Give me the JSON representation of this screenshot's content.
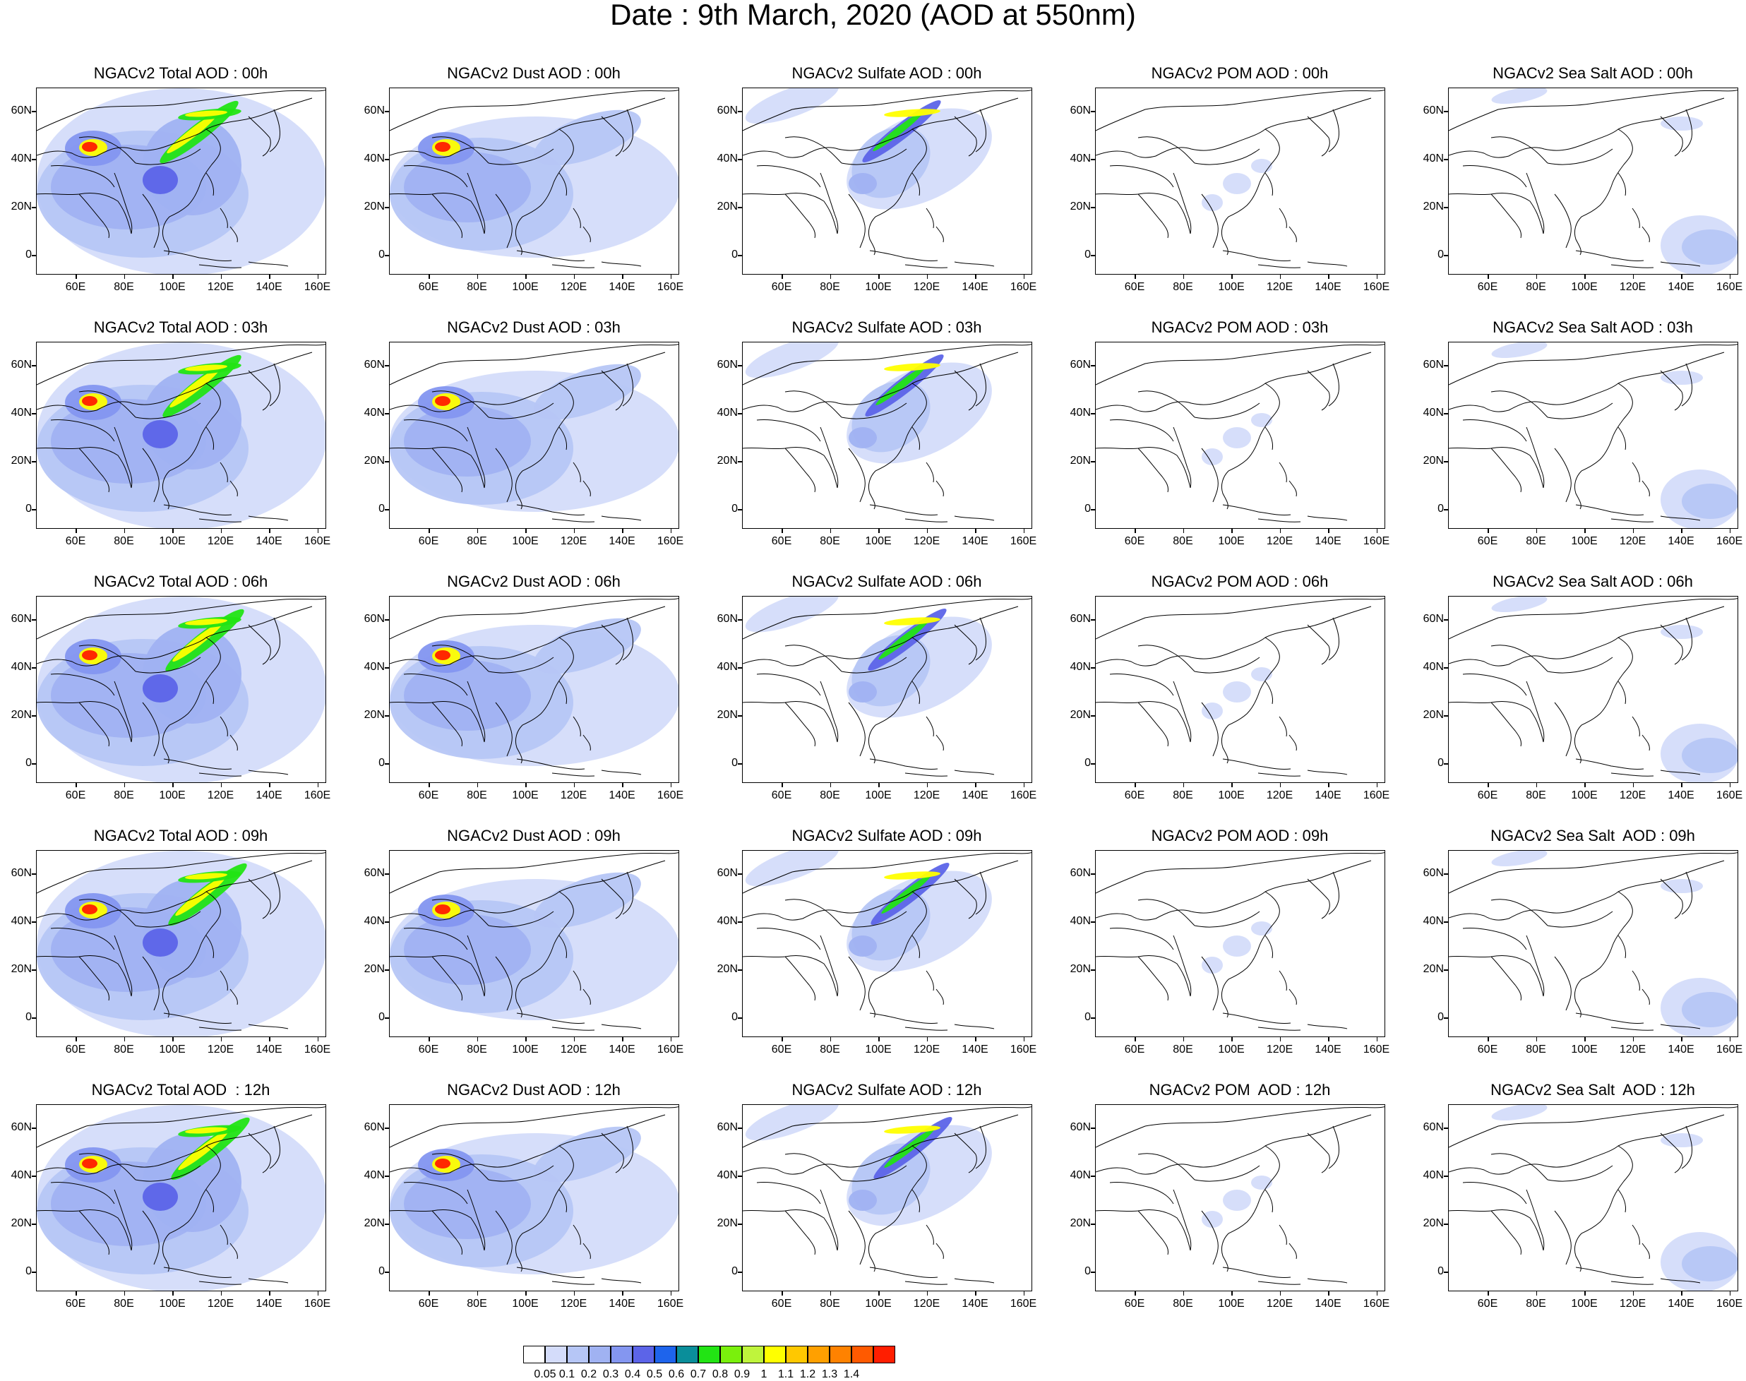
{
  "title": "Date : 9th March, 2020 (AOD at 550nm)",
  "lat_ticks": [
    "60N",
    "40N",
    "20N",
    "0"
  ],
  "lon_ticks": [
    "60E",
    "80E",
    "100E",
    "120E",
    "140E",
    "160E"
  ],
  "rows": [
    {
      "hour": "00h",
      "titles": [
        "NGACv2 Total AOD : 00h",
        "NGACv2 Dust AOD : 00h",
        "NGACv2 Sulfate AOD : 00h",
        "NGACv2 POM AOD : 00h",
        "NGACv2 Sea Salt AOD : 00h"
      ]
    },
    {
      "hour": "03h",
      "titles": [
        "NGACv2 Total AOD : 03h",
        "NGACv2 Dust AOD : 03h",
        "NGACv2 Sulfate AOD : 03h",
        "NGACv2 POM AOD : 03h",
        "NGACv2 Sea Salt AOD : 03h"
      ]
    },
    {
      "hour": "06h",
      "titles": [
        "NGACv2 Total AOD : 06h",
        "NGACv2 Dust AOD : 06h",
        "NGACv2 Sulfate AOD : 06h",
        "NGACv2 POM AOD : 06h",
        "NGACv2 Sea Salt AOD : 06h"
      ]
    },
    {
      "hour": "09h",
      "titles": [
        "NGACv2 Total AOD : 09h",
        "NGACv2 Dust AOD : 09h",
        "NGACv2 Sulfate AOD : 09h",
        "NGACv2 POM AOD : 09h",
        "NGACv2 Sea Salt  AOD : 09h"
      ]
    },
    {
      "hour": "12h",
      "titles": [
        "NGACv2 Total AOD  : 12h",
        "NGACv2 Dust AOD : 12h",
        "NGACv2 Sulfate AOD : 12h",
        "NGACv2 POM  AOD : 12h",
        "NGACv2 Sea Salt  AOD : 12h"
      ]
    }
  ],
  "colorbar": {
    "labels": [
      "0.05",
      "0.1",
      "0.2",
      "0.3",
      "0.4",
      "0.5",
      "0.6",
      "0.7",
      "0.8",
      "0.9",
      "1",
      "1.1",
      "1.2",
      "1.3",
      "1.4"
    ],
    "colors": [
      "#ffffff",
      "#d4dcfa",
      "#b6c6f6",
      "#a0b2f2",
      "#8496f0",
      "#5c64e8",
      "#1e64ec",
      "#0a8e9a",
      "#22e414",
      "#7af00c",
      "#bff43c",
      "#ffff00",
      "#ffc800",
      "#ffa000",
      "#ff8200",
      "#ff5a00",
      "#ff1e00"
    ]
  }
}
